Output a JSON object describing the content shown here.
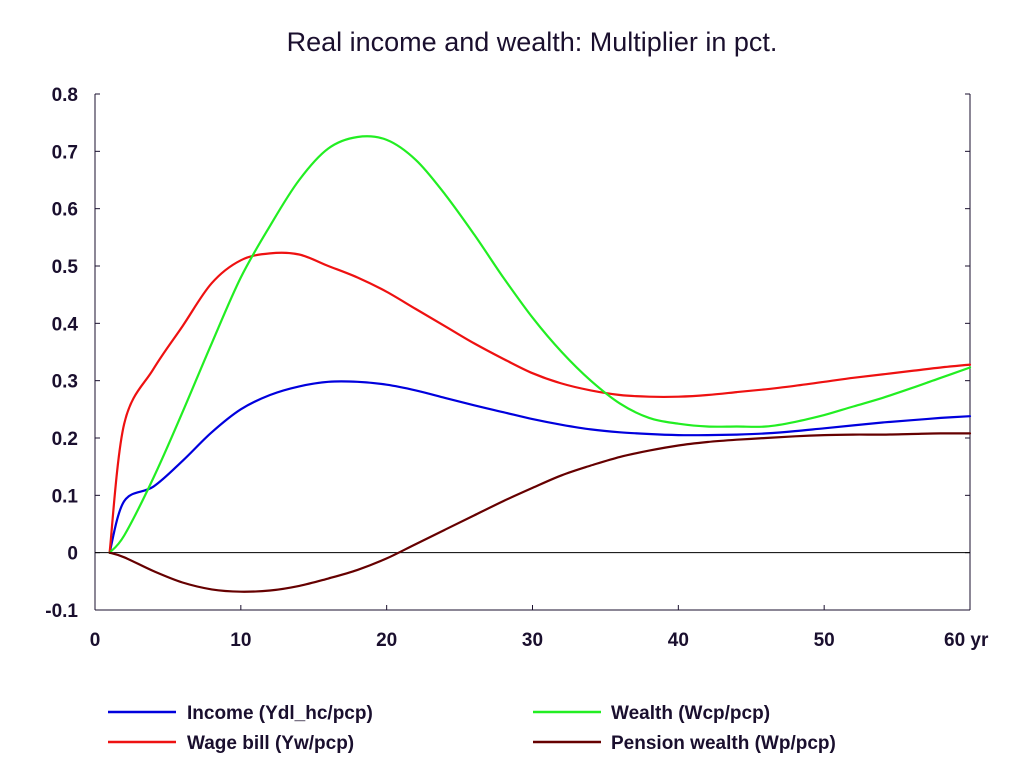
{
  "chart_data": {
    "type": "line",
    "title": "Real income and wealth: Multiplier in pct.",
    "xlabel": "",
    "ylabel": "",
    "x_unit": "yr",
    "xlim": [
      0,
      60
    ],
    "ylim": [
      -0.1,
      0.8
    ],
    "x_ticks": [
      0,
      10,
      20,
      30,
      40,
      50,
      60
    ],
    "x_tick_labels": [
      "0",
      "10",
      "20",
      "30",
      "40",
      "50",
      "60 yr"
    ],
    "y_ticks": [
      -0.1,
      0,
      0.1,
      0.2,
      0.3,
      0.4,
      0.5,
      0.6,
      0.7,
      0.8
    ],
    "y_tick_labels": [
      "-0.1",
      "0",
      "0.1",
      "0.2",
      "0.3",
      "0.4",
      "0.5",
      "0.6",
      "0.7",
      "0.8"
    ],
    "grid": false,
    "zero_line": true,
    "legend_position": "bottom",
    "x": [
      1,
      2,
      4,
      6,
      8,
      10,
      12,
      14,
      16,
      18,
      20,
      22,
      24,
      26,
      28,
      30,
      32,
      34,
      36,
      38,
      40,
      42,
      44,
      46,
      48,
      50,
      52,
      54,
      56,
      58,
      60
    ],
    "series": [
      {
        "name": "Income (Ydl_hc/pcp)",
        "color": "#0000dd",
        "values": [
          0.0,
          0.09,
          0.115,
          0.16,
          0.21,
          0.25,
          0.275,
          0.29,
          0.298,
          0.298,
          0.293,
          0.283,
          0.27,
          0.257,
          0.245,
          0.233,
          0.223,
          0.215,
          0.21,
          0.207,
          0.205,
          0.205,
          0.206,
          0.208,
          0.212,
          0.217,
          0.222,
          0.227,
          0.231,
          0.235,
          0.238
        ]
      },
      {
        "name": "Wage bill (Yw/pcp)",
        "color": "#ee1111",
        "values": [
          0.0,
          0.225,
          0.32,
          0.395,
          0.47,
          0.51,
          0.522,
          0.52,
          0.5,
          0.48,
          0.455,
          0.425,
          0.395,
          0.365,
          0.338,
          0.313,
          0.295,
          0.283,
          0.275,
          0.272,
          0.272,
          0.275,
          0.28,
          0.285,
          0.291,
          0.298,
          0.305,
          0.311,
          0.317,
          0.323,
          0.328
        ]
      },
      {
        "name": "Wealth (Wcp/pcp)",
        "color": "#22ee22",
        "values": [
          0.0,
          0.03,
          0.13,
          0.245,
          0.365,
          0.48,
          0.57,
          0.65,
          0.705,
          0.725,
          0.72,
          0.685,
          0.625,
          0.555,
          0.48,
          0.41,
          0.35,
          0.3,
          0.26,
          0.235,
          0.225,
          0.22,
          0.22,
          0.22,
          0.228,
          0.24,
          0.255,
          0.27,
          0.287,
          0.305,
          0.323
        ]
      },
      {
        "name": "Pension wealth (Wp/pcp)",
        "color": "#660000",
        "values": [
          0.0,
          -0.008,
          -0.032,
          -0.052,
          -0.064,
          -0.068,
          -0.066,
          -0.058,
          -0.045,
          -0.03,
          -0.01,
          0.015,
          0.04,
          0.065,
          0.09,
          0.113,
          0.135,
          0.152,
          0.167,
          0.178,
          0.187,
          0.193,
          0.197,
          0.2,
          0.203,
          0.205,
          0.206,
          0.206,
          0.207,
          0.208,
          0.208
        ]
      }
    ]
  }
}
